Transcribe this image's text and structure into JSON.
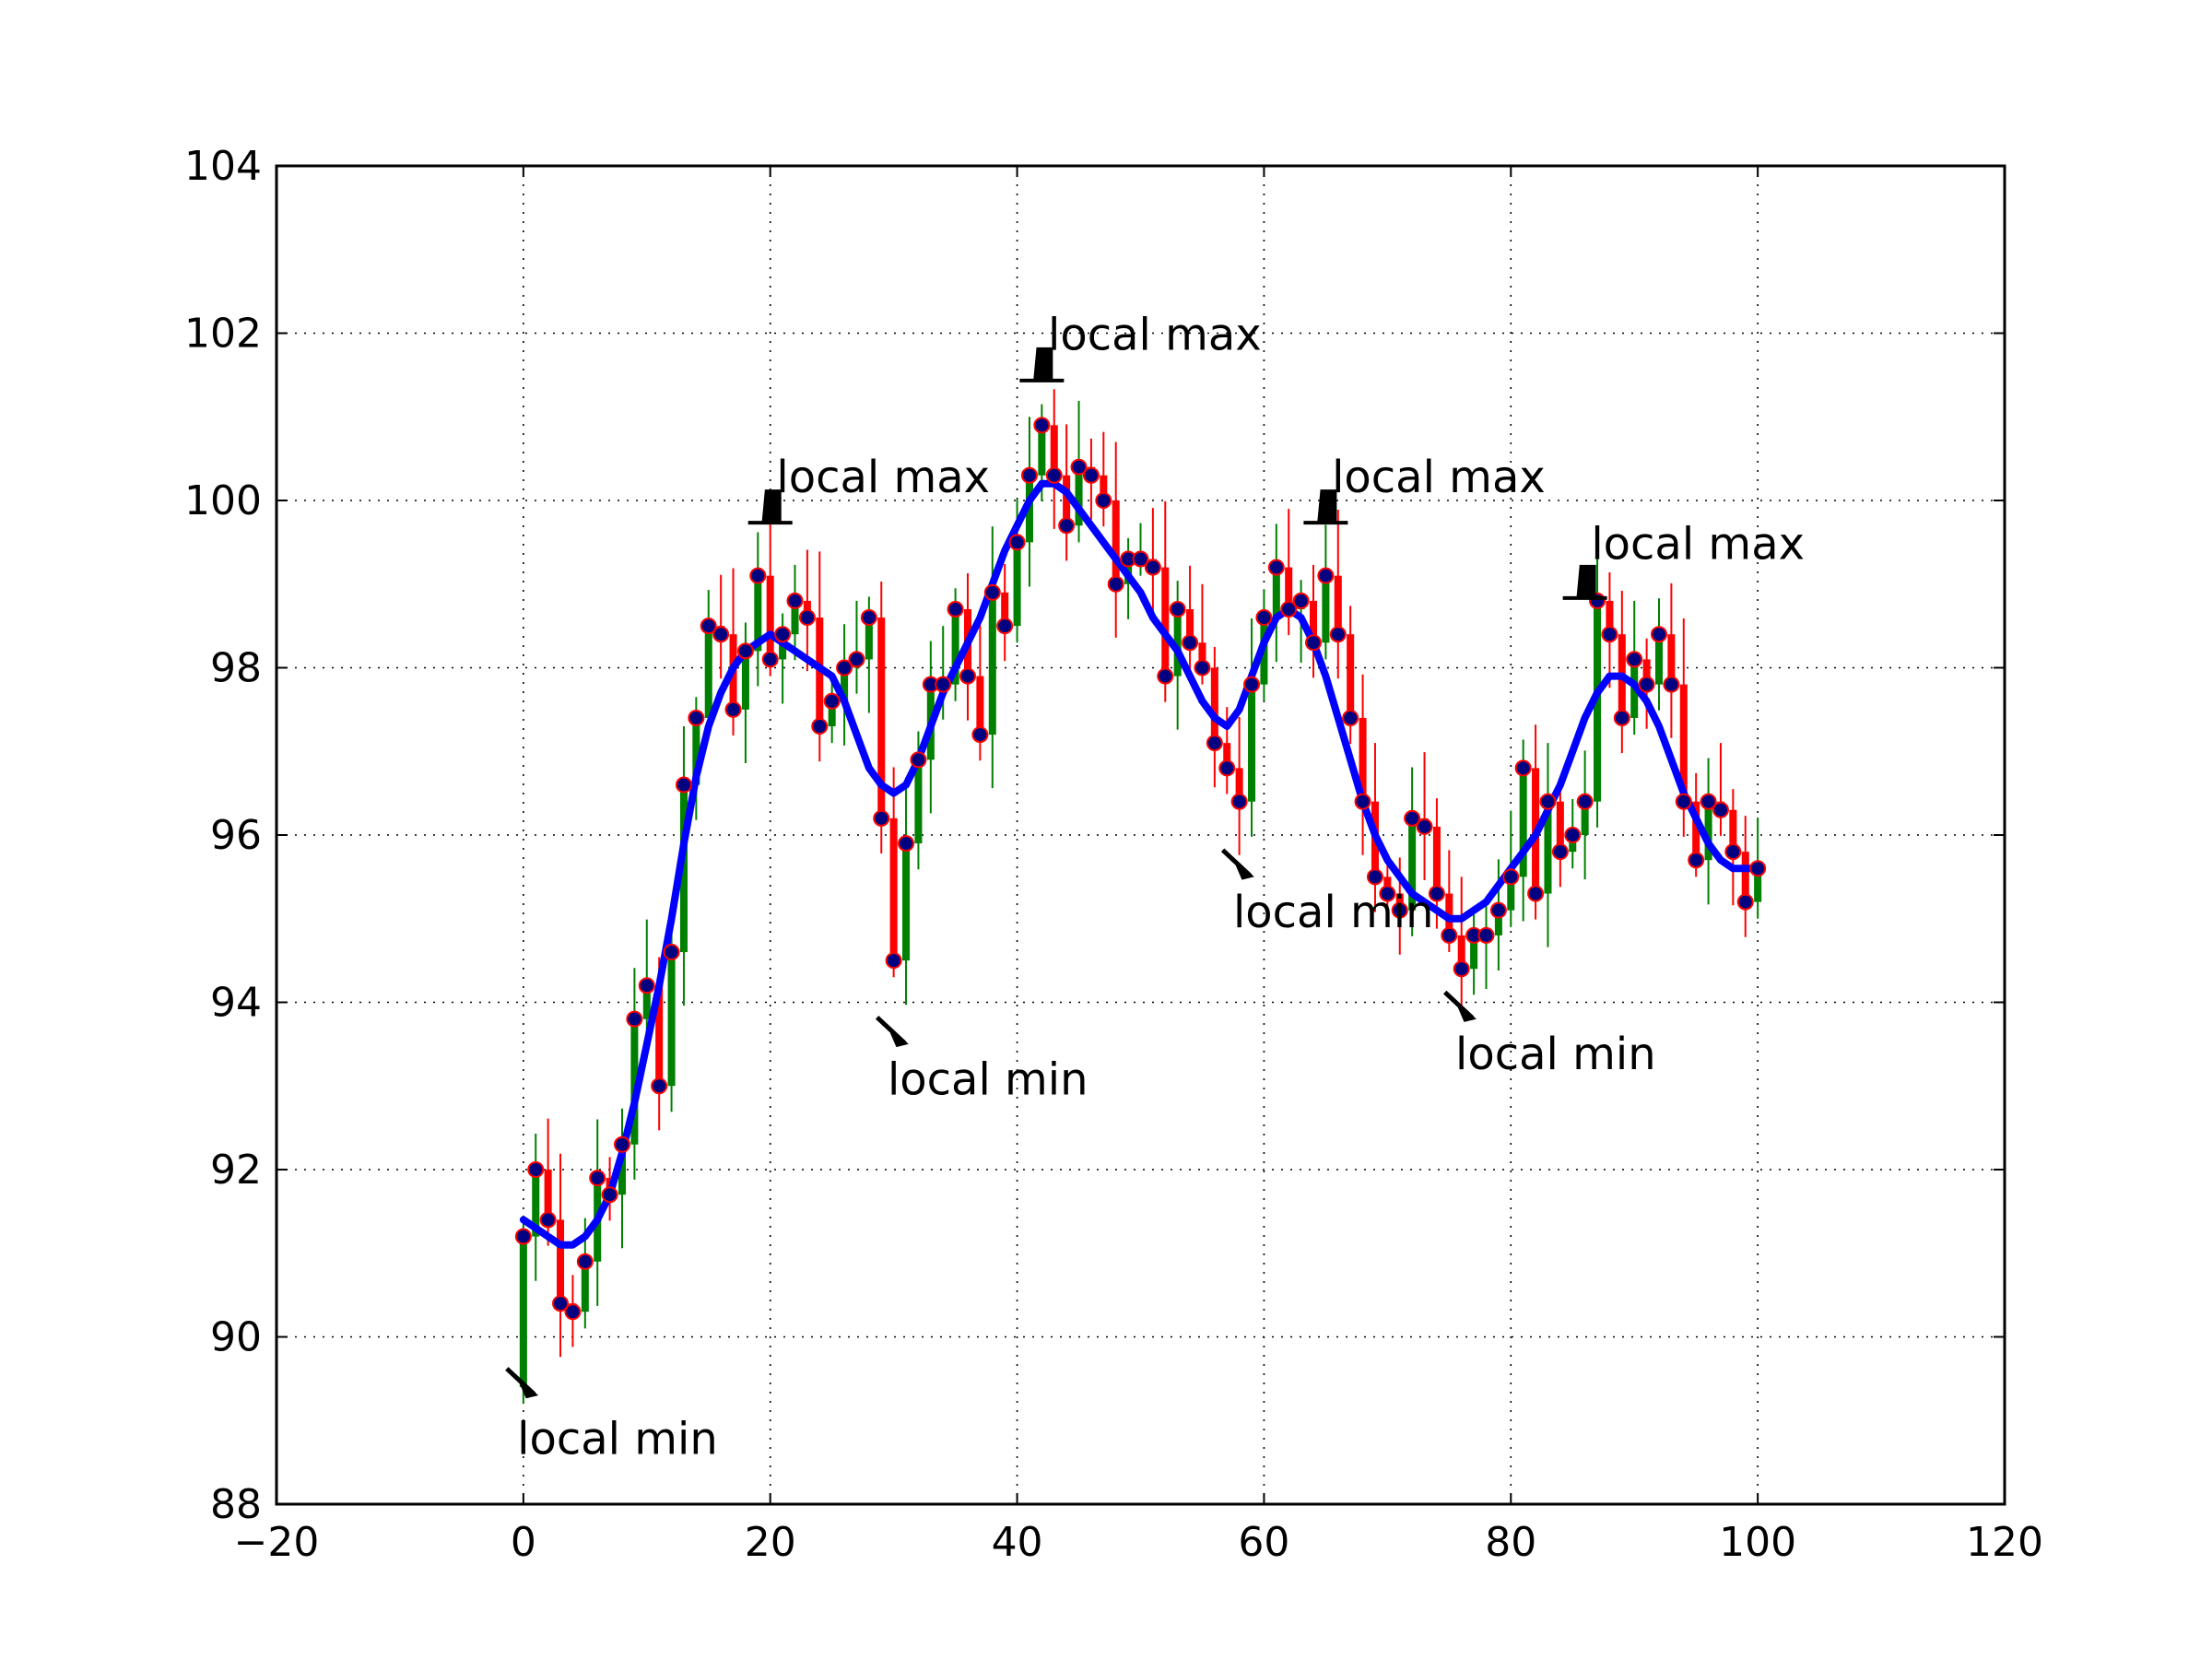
{
  "chart_data": {
    "type": "candlestick",
    "xlim": [
      -20,
      120
    ],
    "ylim": [
      88,
      104
    ],
    "xticks": [
      -20,
      0,
      20,
      40,
      60,
      80,
      100,
      120
    ],
    "yticks": [
      88,
      90,
      92,
      94,
      96,
      98,
      100,
      102,
      104
    ],
    "xtick_labels": [
      "−20",
      "0",
      "20",
      "40",
      "60",
      "80",
      "100",
      "120"
    ],
    "ytick_labels": [
      "88",
      "90",
      "92",
      "94",
      "96",
      "98",
      "100",
      "102",
      "104"
    ],
    "grid": true,
    "colors": {
      "up": "#008000",
      "down": "#ff0000",
      "smooth": "#0000ff",
      "marker_fill": "#000080",
      "marker_edge": "#ff0000"
    },
    "closes": [
      91.2,
      92.0,
      91.4,
      90.4,
      90.3,
      90.9,
      91.9,
      91.7,
      92.3,
      93.8,
      94.2,
      93.0,
      94.6,
      96.6,
      97.4,
      98.5,
      98.4,
      97.5,
      98.2,
      99.1,
      98.1,
      98.4,
      98.8,
      98.6,
      97.3,
      97.6,
      98.0,
      98.1,
      98.6,
      96.2,
      94.5,
      95.9,
      96.9,
      97.8,
      97.8,
      98.7,
      97.9,
      97.2,
      98.9,
      98.5,
      99.5,
      100.3,
      100.9,
      100.3,
      99.7,
      100.4,
      100.3,
      100.0,
      99.0,
      99.3,
      99.3,
      99.2,
      97.9,
      98.7,
      98.3,
      98.0,
      97.1,
      96.8,
      96.4,
      97.8,
      98.6,
      99.2,
      98.7,
      98.8,
      98.3,
      99.1,
      98.4,
      97.4,
      96.4,
      95.5,
      95.3,
      95.1,
      96.2,
      96.1,
      95.3,
      94.8,
      94.4,
      94.8,
      94.8,
      95.1,
      95.5,
      96.8,
      95.3,
      96.4,
      95.8,
      96.0,
      96.4,
      98.8,
      98.4,
      97.4,
      98.1,
      97.8,
      98.4,
      97.8,
      96.4,
      95.7,
      96.4,
      96.3,
      95.8,
      95.2,
      95.6
    ],
    "smooth": [
      91.4,
      91.3,
      91.2,
      91.1,
      91.1,
      91.2,
      91.4,
      91.7,
      92.2,
      92.8,
      93.5,
      94.2,
      95.0,
      95.9,
      96.7,
      97.3,
      97.7,
      98.0,
      98.2,
      98.3,
      98.4,
      98.3,
      98.2,
      98.1,
      98.0,
      97.9,
      97.6,
      97.2,
      96.8,
      96.6,
      96.5,
      96.6,
      96.9,
      97.3,
      97.7,
      98.0,
      98.3,
      98.6,
      99.0,
      99.4,
      99.7,
      100.0,
      100.2,
      100.2,
      100.1,
      99.9,
      99.7,
      99.5,
      99.3,
      99.1,
      98.9,
      98.6,
      98.4,
      98.2,
      97.9,
      97.6,
      97.4,
      97.3,
      97.5,
      97.9,
      98.3,
      98.6,
      98.7,
      98.6,
      98.3,
      97.9,
      97.4,
      96.9,
      96.4,
      96.0,
      95.7,
      95.5,
      95.3,
      95.2,
      95.1,
      95.0,
      95.0,
      95.1,
      95.2,
      95.4,
      95.6,
      95.8,
      96.0,
      96.3,
      96.6,
      97.0,
      97.4,
      97.7,
      97.9,
      97.9,
      97.8,
      97.6,
      97.3,
      96.9,
      96.5,
      96.2,
      95.9,
      95.7,
      95.6,
      95.6,
      95.6
    ],
    "annotations": [
      {
        "label": "local min",
        "type": "min",
        "x": 0,
        "y": 89.4,
        "text_x": -0.5,
        "text_y": 88.6
      },
      {
        "label": "local max",
        "type": "max",
        "x": 20,
        "y": 99.8,
        "text_x": 20.5,
        "text_y": 100.1
      },
      {
        "label": "local min",
        "type": "min",
        "x": 30,
        "y": 93.6,
        "text_x": 29.5,
        "text_y": 92.9
      },
      {
        "label": "local max",
        "type": "max",
        "x": 42,
        "y": 101.5,
        "text_x": 42.5,
        "text_y": 101.8
      },
      {
        "label": "local min",
        "type": "min",
        "x": 58,
        "y": 95.6,
        "text_x": 57.5,
        "text_y": 94.9
      },
      {
        "label": "local max",
        "type": "max",
        "x": 65,
        "y": 99.8,
        "text_x": 65.5,
        "text_y": 100.1
      },
      {
        "label": "local min",
        "type": "min",
        "x": 76,
        "y": 93.9,
        "text_x": 75.5,
        "text_y": 93.2
      },
      {
        "label": "local max",
        "type": "max",
        "x": 86,
        "y": 98.9,
        "text_x": 86.5,
        "text_y": 99.3
      }
    ]
  }
}
